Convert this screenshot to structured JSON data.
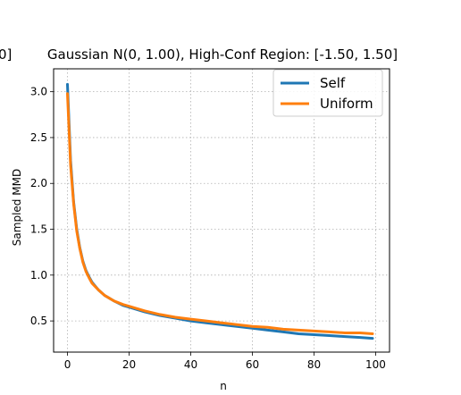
{
  "chart_data": {
    "type": "line",
    "title": "Gaussian N(0, 1.00), High-Conf Region: [-1.50, 1.50]",
    "title_fragment_left": "0]",
    "xlabel": "n",
    "ylabel": "Sampled MMD",
    "xlim": [
      -4.5,
      104.5
    ],
    "ylim": [
      0.16,
      3.25
    ],
    "x_ticks": [
      0,
      20,
      40,
      60,
      80,
      100
    ],
    "y_ticks": [
      0.5,
      1.0,
      1.5,
      2.0,
      2.5,
      3.0
    ],
    "y_tick_labels": [
      "0.5",
      "1.0",
      "1.5",
      "2.0",
      "2.5",
      "3.0"
    ],
    "grid": true,
    "grid_style": "dotted",
    "legend_position": "top-right",
    "x": [
      0,
      1,
      2,
      3,
      4,
      5,
      6,
      7,
      8,
      10,
      12,
      15,
      18,
      20,
      25,
      30,
      35,
      40,
      45,
      50,
      55,
      60,
      65,
      70,
      75,
      80,
      85,
      90,
      95,
      99
    ],
    "series": [
      {
        "name": "Self",
        "color": "#1f77b4",
        "values": [
          3.08,
          2.25,
          1.8,
          1.5,
          1.3,
          1.15,
          1.05,
          0.98,
          0.92,
          0.84,
          0.78,
          0.72,
          0.67,
          0.65,
          0.6,
          0.56,
          0.53,
          0.5,
          0.48,
          0.46,
          0.44,
          0.42,
          0.4,
          0.38,
          0.36,
          0.35,
          0.34,
          0.33,
          0.32,
          0.31
        ]
      },
      {
        "name": "Uniform",
        "color": "#ff7f0e",
        "values": [
          2.98,
          2.2,
          1.78,
          1.48,
          1.29,
          1.14,
          1.04,
          0.97,
          0.91,
          0.84,
          0.78,
          0.72,
          0.68,
          0.66,
          0.61,
          0.57,
          0.54,
          0.52,
          0.5,
          0.48,
          0.46,
          0.44,
          0.43,
          0.41,
          0.4,
          0.39,
          0.38,
          0.37,
          0.37,
          0.36
        ]
      }
    ]
  }
}
